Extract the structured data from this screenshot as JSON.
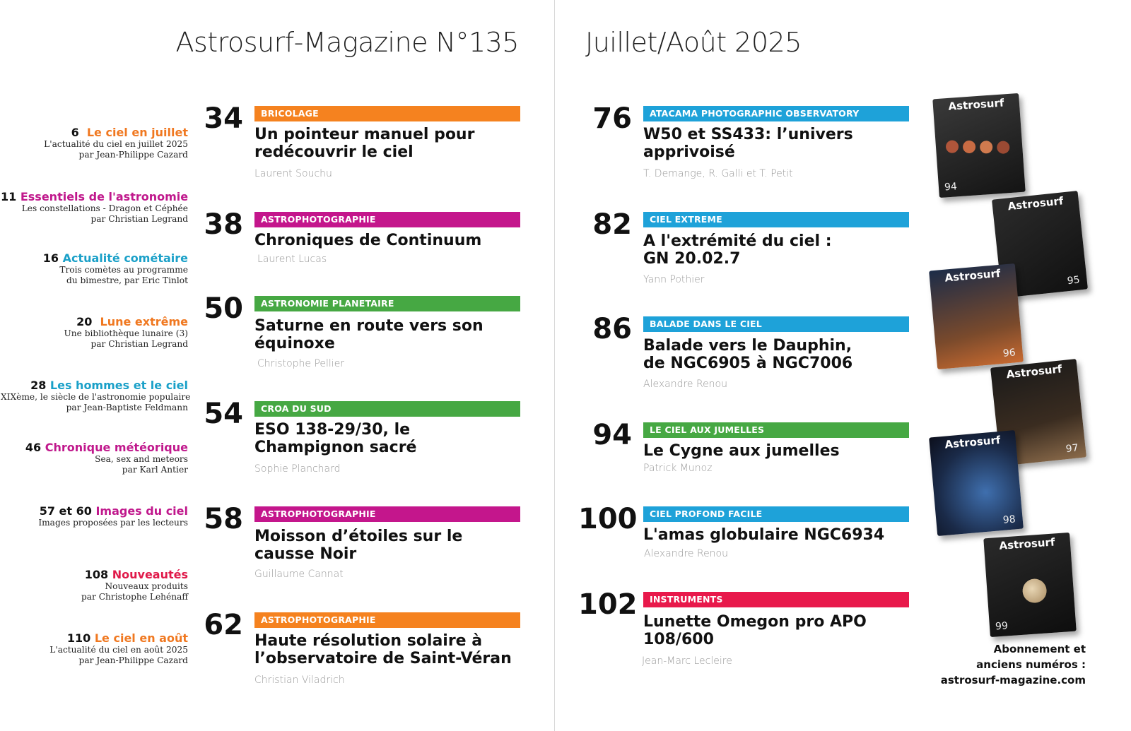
{
  "header": {
    "left_title": "Astrosurf-Magazine N°135",
    "right_title": "Juillet/Août 2025"
  },
  "sidebar": [
    {
      "num": "6",
      "title": "Le ciel en juillet",
      "color": "#f07820",
      "lines": [
        "L'actualité du ciel en juillet 2025",
        "par Jean-Philippe Cazard"
      ]
    },
    {
      "num": "11",
      "title": "Essentiels de l'astronomie",
      "color": "#c0188c",
      "lines": [
        "Les constellations - Dragon et Céphée",
        "par Christian Legrand"
      ]
    },
    {
      "num": "16",
      "title": "Actualité cométaire",
      "color": "#1aa0c8",
      "lines": [
        "Trois comètes au programme",
        "du bimestre, par Eric Tinlot"
      ]
    },
    {
      "num": "20",
      "title": "Lune extrême",
      "color": "#f07820",
      "lines": [
        "Une bibliothèque lunaire (3)",
        "par  Christian Legrand"
      ]
    },
    {
      "num": "28",
      "title": "Les hommes et le ciel",
      "color": "#1aa0c8",
      "lines": [
        "XIXème, le siècle de l'astronomie populaire",
        "par Jean-Baptiste Feldmann"
      ]
    },
    {
      "num": "46",
      "title": "Chronique météorique",
      "color": "#c0188c",
      "lines": [
        "Sea, sex and meteors",
        "par Karl Antier"
      ]
    },
    {
      "num": "57 et 60",
      "title": "Images du ciel",
      "color": "#c0188c",
      "lines": [
        "Images proposées par les lecteurs"
      ]
    },
    {
      "num": "108",
      "title": "Nouveautés",
      "color": "#e01a4a",
      "lines": [
        "Nouveaux produits",
        "par Christophe Lehénaff"
      ]
    },
    {
      "num": "110",
      "title": "Le ciel en août",
      "color": "#f07820",
      "lines": [
        "L'actualité du ciel en août 2025",
        "par Jean-Philippe Cazard"
      ]
    }
  ],
  "left_articles": [
    {
      "page": "34",
      "category": "BRICOLAGE",
      "color": "#f5821f",
      "title": [
        "Un pointeur manuel pour",
        "redécouvrir le ciel"
      ],
      "author": "Laurent Souchu"
    },
    {
      "page": "38",
      "category": "ASTROPHOTOGRAPHIE",
      "color": "#c4168c",
      "title": [
        "Chroniques de Continuum"
      ],
      "author": "Laurent Lucas"
    },
    {
      "page": "50",
      "category": "ASTRONOMIE PLANETAIRE",
      "color": "#46a843",
      "title": [
        "Saturne en route vers son",
        "équinoxe"
      ],
      "author": "Christophe Pellier"
    },
    {
      "page": "54",
      "category": "CROA DU SUD",
      "color": "#46a843",
      "title": [
        "ESO 138-29/30, le",
        "Champignon sacré"
      ],
      "author": "Sophie Planchard"
    },
    {
      "page": "58",
      "category": "ASTROPHOTOGRAPHIE",
      "color": "#c4168c",
      "title": [
        "Moisson d’étoiles sur le",
        "causse Noir"
      ],
      "author": "Guillaume Cannat"
    },
    {
      "page": "62",
      "category": "ASTROPHOTOGRAPHIE",
      "color": "#f5821f",
      "title": [
        "Haute résolution solaire à",
        "l’observatoire de Saint-Véran"
      ],
      "author": "Christian Viladrich"
    }
  ],
  "right_articles": [
    {
      "page": "76",
      "category": "ATACAMA PHOTOGRAPHIC OBSERVATORY",
      "color": "#1ea2d9",
      "title": [
        "W50 et SS433: l’univers",
        "apprivoisé"
      ],
      "author": "T. Demange, R. Galli et T. Petit"
    },
    {
      "page": "82",
      "category": "CIEL EXTREME",
      "color": "#1ea2d9",
      "title": [
        "A l'extrémité du ciel :",
        "GN 20.02.7"
      ],
      "author": "Yann Pothier"
    },
    {
      "page": "86",
      "category": "BALADE DANS LE CIEL",
      "color": "#1ea2d9",
      "title": [
        "Balade vers le Dauphin,",
        "de NGC6905 à NGC7006"
      ],
      "author": "Alexandre Renou"
    },
    {
      "page": "94",
      "category": "LE CIEL AUX JUMELLES",
      "color": "#46a843",
      "title": [
        "Le Cygne aux jumelles"
      ],
      "author": "Patrick Munoz"
    },
    {
      "page": "100",
      "category": "CIEL PROFOND FACILE",
      "color": "#1ea2d9",
      "title": [
        "L'amas globulaire NGC6934"
      ],
      "author": "Alexandre Renou"
    },
    {
      "page": "102",
      "category": "INSTRUMENTS",
      "color": "#e8194b",
      "title": [
        "Lunette Omegon pro APO",
        "108/600"
      ],
      "author": "Jean-Marc Lecleire"
    }
  ],
  "covers": [
    {
      "logo": "Astrosurf",
      "num": "94"
    },
    {
      "logo": "Astrosurf",
      "num": "95"
    },
    {
      "logo": "Astrosurf",
      "num": "96"
    },
    {
      "logo": "Astrosurf",
      "num": "97"
    },
    {
      "logo": "Astrosurf",
      "num": "98"
    },
    {
      "logo": "Astrosurf",
      "num": "99"
    }
  ],
  "subscription": [
    "Abonnement et",
    "anciens numéros :",
    "astrosurf-magazine.com"
  ]
}
